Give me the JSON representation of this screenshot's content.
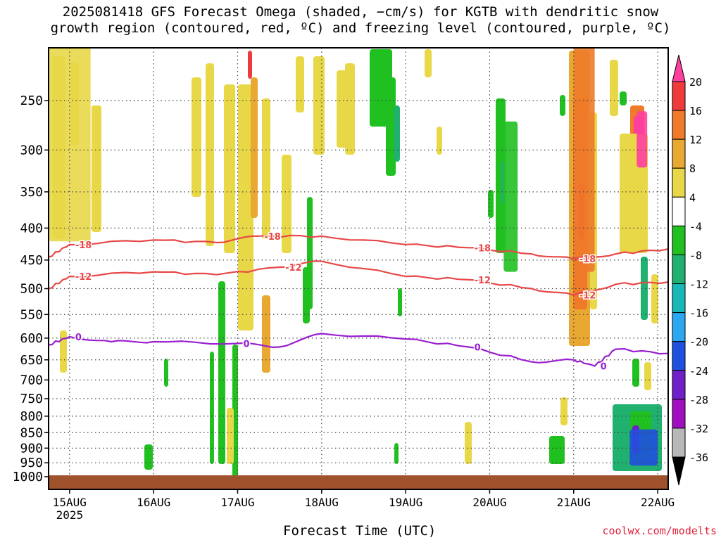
{
  "title_line1": "2025081418 GFS Forecast Omega (shaded, −cm/s) for KGTB with dendritic snow",
  "title_line2": "growth region (contoured, red, ºC) and freezing level (contoured, purple, ºC)",
  "credit": "coolwx.com/modelts",
  "chart_data": {
    "type": "heatmap",
    "xlabel": "Forecast Time (UTC)",
    "ylabel": "",
    "x_ticks": [
      "15AUG",
      "16AUG",
      "17AUG",
      "18AUG",
      "19AUG",
      "20AUG",
      "21AUG",
      "22AUG"
    ],
    "x_year_label": "2025",
    "x_range": [
      "2025-08-14T18:00Z",
      "2025-08-22T03:00Z"
    ],
    "y_ticks": [
      250,
      300,
      350,
      400,
      450,
      500,
      550,
      600,
      650,
      700,
      750,
      800,
      850,
      900,
      950,
      1000
    ],
    "y_range_hpa": [
      200,
      1020
    ],
    "y_scale": "log-pressure (inverted)",
    "grid": true,
    "colorbar": {
      "labels": [
        20,
        16,
        12,
        8,
        4,
        -4,
        -8,
        -12,
        -16,
        -20,
        -24,
        -28,
        -32,
        -36
      ],
      "colors": [
        "#ff3fa0",
        "#ee3a3a",
        "#ee7a2a",
        "#e8a832",
        "#e8d848",
        "#ffffff",
        "#21c021",
        "#20b070",
        "#18b8b8",
        "#2ca8f0",
        "#2050e0",
        "#7020c8",
        "#a010c0",
        "#b8b8b8",
        "#000000"
      ]
    },
    "contours": [
      {
        "name": "-18",
        "color": "#e84848",
        "labels": [
          "-18",
          "-18",
          "-18",
          "-18"
        ],
        "points": [
          [
            "2025-08-14T18:00Z",
            445
          ],
          [
            "2025-08-15T00:00Z",
            425
          ],
          [
            "2025-08-16T00:00Z",
            418
          ],
          [
            "2025-08-16T18:00Z",
            422
          ],
          [
            "2025-08-17T06:00Z",
            412
          ],
          [
            "2025-08-18T00:00Z",
            412
          ],
          [
            "2025-08-19T00:00Z",
            425
          ],
          [
            "2025-08-19T18:00Z",
            430
          ],
          [
            "2025-08-20T12:00Z",
            440
          ],
          [
            "2025-08-21T00:00Z",
            448
          ],
          [
            "2025-08-21T12:00Z",
            440
          ],
          [
            "2025-08-22T03:00Z",
            432
          ]
        ]
      },
      {
        "name": "-12",
        "color": "#e84848",
        "labels": [
          "-12",
          "-12",
          "-12",
          "-12"
        ],
        "points": [
          [
            "2025-08-14T18:00Z",
            500
          ],
          [
            "2025-08-15T00:00Z",
            478
          ],
          [
            "2025-08-16T00:00Z",
            470
          ],
          [
            "2025-08-16T18:00Z",
            475
          ],
          [
            "2025-08-17T12:00Z",
            462
          ],
          [
            "2025-08-18T00:00Z",
            452
          ],
          [
            "2025-08-19T00:00Z",
            478
          ],
          [
            "2025-08-19T18:00Z",
            484
          ],
          [
            "2025-08-20T12:00Z",
            500
          ],
          [
            "2025-08-21T00:00Z",
            512
          ],
          [
            "2025-08-21T12:00Z",
            492
          ],
          [
            "2025-08-22T03:00Z",
            488
          ]
        ]
      },
      {
        "name": "0",
        "color": "#9a1fd0",
        "labels": [
          "0",
          "0",
          "0",
          "0"
        ],
        "points": [
          [
            "2025-08-14T18:00Z",
            615
          ],
          [
            "2025-08-15T00:00Z",
            597
          ],
          [
            "2025-08-15T12:00Z",
            608
          ],
          [
            "2025-08-16T00:00Z",
            608
          ],
          [
            "2025-08-17T00:00Z",
            612
          ],
          [
            "2025-08-17T12:00Z",
            620
          ],
          [
            "2025-08-18T00:00Z",
            590
          ],
          [
            "2025-08-19T00:00Z",
            602
          ],
          [
            "2025-08-19T18:00Z",
            620
          ],
          [
            "2025-08-20T12:00Z",
            655
          ],
          [
            "2025-08-21T00:00Z",
            650
          ],
          [
            "2025-08-21T06:00Z",
            665
          ],
          [
            "2025-08-21T12:00Z",
            625
          ],
          [
            "2025-08-22T03:00Z",
            635
          ]
        ]
      }
    ],
    "shaded_regions": [
      {
        "name": "upper-yellow-15aug",
        "level": 4,
        "t": [
          "2025-08-14T18:00Z",
          "2025-08-15T06:00Z"
        ],
        "p": [
          200,
          420
        ]
      },
      {
        "name": "strong-upper-21aug",
        "level": 12,
        "t": [
          "2025-08-21T00:00Z",
          "2025-08-21T06:00Z"
        ],
        "p": [
          200,
          470
        ]
      },
      {
        "name": "strong-upper-22aug",
        "level": 20,
        "t": [
          "2025-08-21T18:00Z",
          "2025-08-21T21:00Z"
        ],
        "p": [
          260,
          320
        ]
      },
      {
        "name": "rising-low-22aug",
        "level": -24,
        "t": [
          "2025-08-21T16:00Z",
          "2025-08-22T00:00Z"
        ],
        "p": [
          840,
          960
        ]
      },
      {
        "name": "green-20aug",
        "level": -8,
        "t": [
          "2025-08-20T04:00Z",
          "2025-08-20T08:00Z"
        ],
        "p": [
          270,
          470
        ]
      }
    ]
  }
}
